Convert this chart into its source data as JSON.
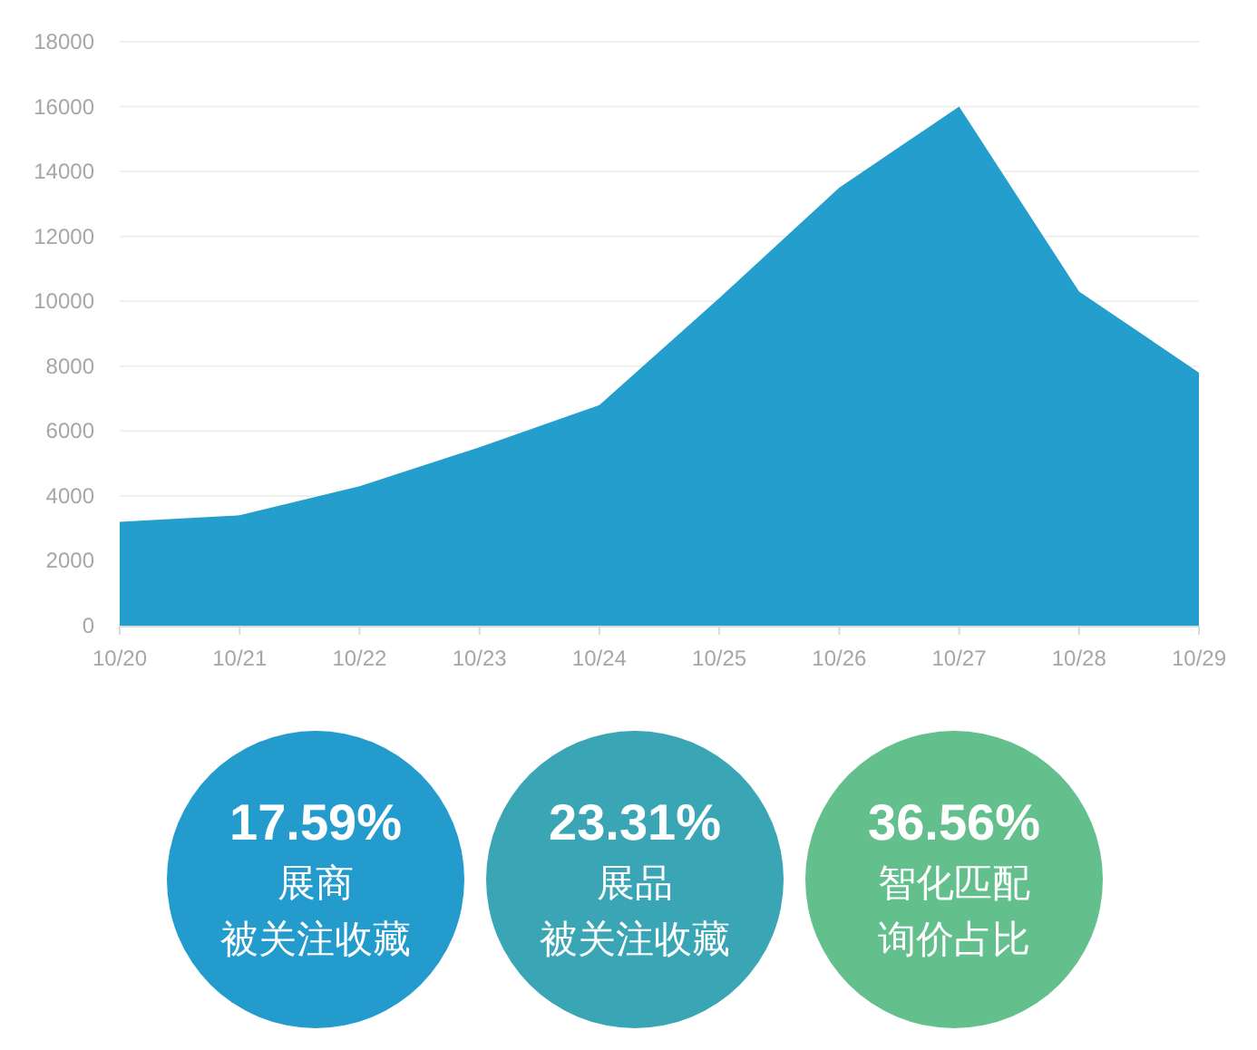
{
  "chart_data": [
    {
      "type": "area",
      "categories": [
        "10/20",
        "10/21",
        "10/22",
        "10/23",
        "10/24",
        "10/25",
        "10/26",
        "10/27",
        "10/28",
        "10/29"
      ],
      "values": [
        3200,
        3400,
        4300,
        5500,
        6800,
        10100,
        13500,
        16000,
        10300,
        7800
      ],
      "color": "#239ecd",
      "ylim": [
        0,
        18000
      ],
      "yticks": [
        0,
        2000,
        4000,
        6000,
        8000,
        10000,
        12000,
        14000,
        16000,
        18000
      ],
      "grid": "y"
    },
    {
      "type": "other",
      "annotations": [
        "17.59%",
        "展商",
        "被关注收藏",
        "23.31%",
        "展品",
        "被关注收藏",
        "36.56%",
        "智化匹配",
        "询价占比"
      ],
      "colors": [
        "#239bcd",
        "#3aa6b5",
        "#63c08c"
      ]
    }
  ]
}
